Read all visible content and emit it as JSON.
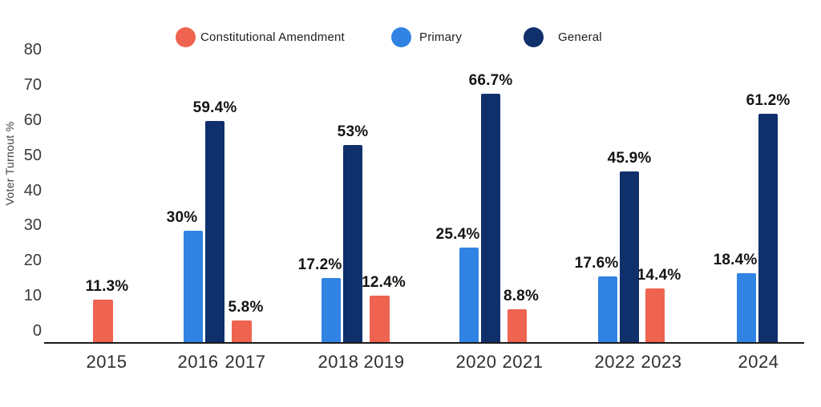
{
  "chart_data": {
    "type": "bar",
    "title": "",
    "xlabel": "",
    "ylabel": "Voter Turnout %",
    "ylim": [
      0,
      80
    ],
    "yticks": [
      80,
      70,
      60,
      50,
      40,
      30,
      20,
      10,
      0
    ],
    "grid": false,
    "legend_position": "top",
    "categories": [
      "2015",
      "2016",
      "2017",
      "2018",
      "2019",
      "2020",
      "2021",
      "2022",
      "2023",
      "2024"
    ],
    "series": [
      {
        "name": "Constitutional Amendment",
        "color": "#EF6351",
        "values": [
          11.3,
          null,
          5.8,
          null,
          12.4,
          null,
          8.8,
          null,
          14.4,
          null
        ],
        "labels": [
          "11.3%",
          null,
          "5.8%",
          null,
          "12.4%",
          null,
          "8.8%",
          null,
          "14.4%",
          null
        ]
      },
      {
        "name": "Primary",
        "color": "#3183E3",
        "values": [
          null,
          30,
          null,
          17.2,
          null,
          25.4,
          null,
          17.6,
          null,
          18.4
        ],
        "labels": [
          null,
          "30%",
          null,
          "17.2%",
          null,
          "25.4%",
          null,
          "17.6%",
          null,
          "18.4%"
        ]
      },
      {
        "name": "General",
        "color": "#10306C",
        "values": [
          null,
          59.4,
          null,
          53,
          null,
          66.7,
          null,
          45.9,
          null,
          61.2
        ],
        "labels": [
          null,
          "59.4%",
          null,
          "53%",
          null,
          "66.7%",
          null,
          "45.9%",
          null,
          "61.2%"
        ]
      }
    ]
  }
}
